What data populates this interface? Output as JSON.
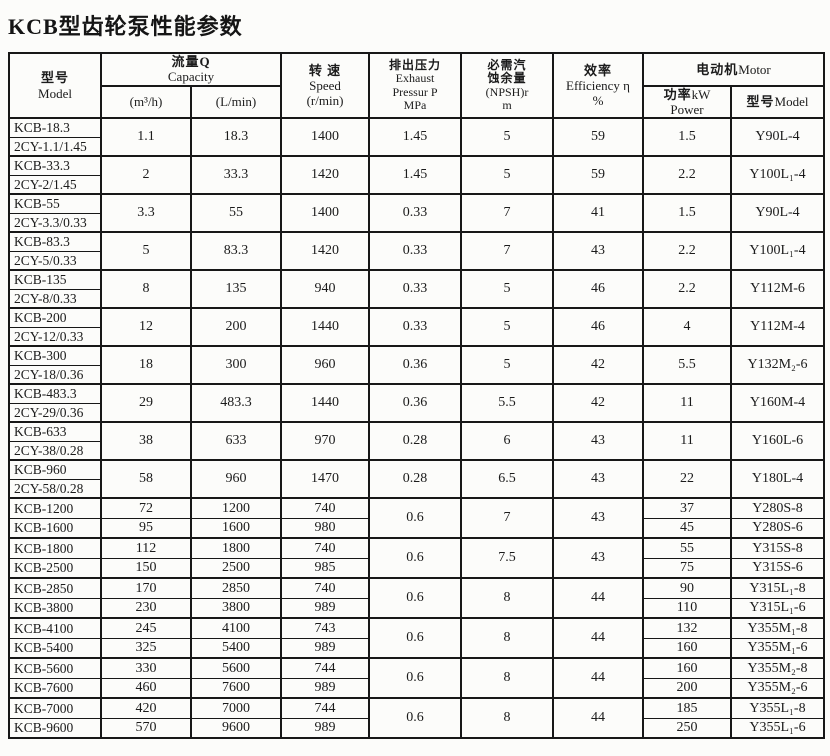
{
  "page": {
    "title": "KCB型齿轮泵性能参数",
    "background": "#fcfcfa",
    "border_color": "#171717",
    "text_color": "#1b1b1b"
  },
  "table": {
    "header": {
      "model": {
        "cn": "型号",
        "en": "Model"
      },
      "capacity_group": {
        "cn": "流量Q",
        "en": "Capacity"
      },
      "capacity_unit_m3h": "(m³/h)",
      "capacity_unit_lmin": "(L/min)",
      "speed": {
        "cn": "转 速",
        "en": "Speed",
        "unit": "(r/min)"
      },
      "pressure": {
        "cn": "排出压力",
        "en1": "Exhaust",
        "en2": "Pressur P",
        "unit": "MPa"
      },
      "npsh": {
        "cn1": "必需汽",
        "cn2": "蚀余量",
        "en": "(NPSH)r",
        "unit": "m"
      },
      "efficiency": {
        "cn": "效率",
        "en": "Efficiency η",
        "unit": "%"
      },
      "motor_group": {
        "cn": "电动机",
        "en": "Motor"
      },
      "motor_power": {
        "cn": "功率",
        "suffix": "kW",
        "en": "Power"
      },
      "motor_model": {
        "cn": "型号",
        "en": "Model"
      }
    },
    "upper_rows": [
      {
        "model_kcb": "KCB-18.3",
        "model_2cy": "2CY-1.1/1.45",
        "m3h": "1.1",
        "lmin": "18.3",
        "speed": "1400",
        "pressure": "1.45",
        "npsh": "5",
        "efficiency": "59",
        "power": "1.5",
        "motor": "Y90L-4"
      },
      {
        "model_kcb": "KCB-33.3",
        "model_2cy": "2CY-2/1.45",
        "m3h": "2",
        "lmin": "33.3",
        "speed": "1420",
        "pressure": "1.45",
        "npsh": "5",
        "efficiency": "59",
        "power": "2.2",
        "motor": "Y100L₁-4"
      },
      {
        "model_kcb": "KCB-55",
        "model_2cy": "2CY-3.3/0.33",
        "m3h": "3.3",
        "lmin": "55",
        "speed": "1400",
        "pressure": "0.33",
        "npsh": "7",
        "efficiency": "41",
        "power": "1.5",
        "motor": "Y90L-4"
      },
      {
        "model_kcb": "KCB-83.3",
        "model_2cy": "2CY-5/0.33",
        "m3h": "5",
        "lmin": "83.3",
        "speed": "1420",
        "pressure": "0.33",
        "npsh": "7",
        "efficiency": "43",
        "power": "2.2",
        "motor": "Y100L₁-4"
      },
      {
        "model_kcb": "KCB-135",
        "model_2cy": "2CY-8/0.33",
        "m3h": "8",
        "lmin": "135",
        "speed": "940",
        "pressure": "0.33",
        "npsh": "5",
        "efficiency": "46",
        "power": "2.2",
        "motor": "Y112M-6"
      },
      {
        "model_kcb": "KCB-200",
        "model_2cy": "2CY-12/0.33",
        "m3h": "12",
        "lmin": "200",
        "speed": "1440",
        "pressure": "0.33",
        "npsh": "5",
        "efficiency": "46",
        "power": "4",
        "motor": "Y112M-4"
      },
      {
        "model_kcb": "KCB-300",
        "model_2cy": "2CY-18/0.36",
        "m3h": "18",
        "lmin": "300",
        "speed": "960",
        "pressure": "0.36",
        "npsh": "5",
        "efficiency": "42",
        "power": "5.5",
        "motor": "Y132M₂-6"
      },
      {
        "model_kcb": "KCB-483.3",
        "model_2cy": "2CY-29/0.36",
        "m3h": "29",
        "lmin": "483.3",
        "speed": "1440",
        "pressure": "0.36",
        "npsh": "5.5",
        "efficiency": "42",
        "power": "11",
        "motor": "Y160M-4"
      },
      {
        "model_kcb": "KCB-633",
        "model_2cy": "2CY-38/0.28",
        "m3h": "38",
        "lmin": "633",
        "speed": "970",
        "pressure": "0.28",
        "npsh": "6",
        "efficiency": "43",
        "power": "11",
        "motor": "Y160L-6"
      },
      {
        "model_kcb": "KCB-960",
        "model_2cy": "2CY-58/0.28",
        "m3h": "58",
        "lmin": "960",
        "speed": "1470",
        "pressure": "0.28",
        "npsh": "6.5",
        "efficiency": "43",
        "power": "22",
        "motor": "Y180L-4"
      }
    ],
    "lower_pairs": [
      {
        "pressure": "0.6",
        "npsh": "7",
        "efficiency": "43",
        "rows": [
          {
            "model": "KCB-1200",
            "m3h": "72",
            "lmin": "1200",
            "speed": "740",
            "power": "37",
            "motor": "Y280S-8"
          },
          {
            "model": "KCB-1600",
            "m3h": "95",
            "lmin": "1600",
            "speed": "980",
            "power": "45",
            "motor": "Y280S-6"
          }
        ]
      },
      {
        "pressure": "0.6",
        "npsh": "7.5",
        "efficiency": "43",
        "rows": [
          {
            "model": "KCB-1800",
            "m3h": "112",
            "lmin": "1800",
            "speed": "740",
            "power": "55",
            "motor": "Y315S-8"
          },
          {
            "model": "KCB-2500",
            "m3h": "150",
            "lmin": "2500",
            "speed": "985",
            "power": "75",
            "motor": "Y315S-6"
          }
        ]
      },
      {
        "pressure": "0.6",
        "npsh": "8",
        "efficiency": "44",
        "rows": [
          {
            "model": "KCB-2850",
            "m3h": "170",
            "lmin": "2850",
            "speed": "740",
            "power": "90",
            "motor": "Y315L₁-8"
          },
          {
            "model": "KCB-3800",
            "m3h": "230",
            "lmin": "3800",
            "speed": "989",
            "power": "110",
            "motor": "Y315L₁-6"
          }
        ]
      },
      {
        "pressure": "0.6",
        "npsh": "8",
        "efficiency": "44",
        "rows": [
          {
            "model": "KCB-4100",
            "m3h": "245",
            "lmin": "4100",
            "speed": "743",
            "power": "132",
            "motor": "Y355M₁-8"
          },
          {
            "model": "KCB-5400",
            "m3h": "325",
            "lmin": "5400",
            "speed": "989",
            "power": "160",
            "motor": "Y355M₁-6"
          }
        ]
      },
      {
        "pressure": "0.6",
        "npsh": "8",
        "efficiency": "44",
        "rows": [
          {
            "model": "KCB-5600",
            "m3h": "330",
            "lmin": "5600",
            "speed": "744",
            "power": "160",
            "motor": "Y355M₂-8"
          },
          {
            "model": "KCB-7600",
            "m3h": "460",
            "lmin": "7600",
            "speed": "989",
            "power": "200",
            "motor": "Y355M₂-6"
          }
        ]
      },
      {
        "pressure": "0.6",
        "npsh": "8",
        "efficiency": "44",
        "rows": [
          {
            "model": "KCB-7000",
            "m3h": "420",
            "lmin": "7000",
            "speed": "744",
            "power": "185",
            "motor": "Y355L₁-8"
          },
          {
            "model": "KCB-9600",
            "m3h": "570",
            "lmin": "9600",
            "speed": "989",
            "power": "250",
            "motor": "Y355L₁-6"
          }
        ]
      }
    ]
  }
}
